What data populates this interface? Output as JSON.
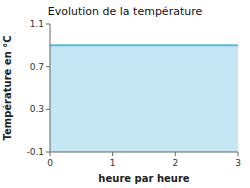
{
  "chart_data": {
    "type": "area",
    "title": "Evolution de la température",
    "xlabel": "heure par heure",
    "ylabel": "Température en °C",
    "x": [
      0,
      3
    ],
    "values": [
      0.9,
      0.9
    ],
    "color": "#55bbdd",
    "xlim": [
      0,
      3
    ],
    "ylim": [
      -0.1,
      1.1
    ],
    "xticks": [
      0,
      1,
      2,
      3
    ],
    "yticks": [
      -0.1,
      0.3,
      0.7,
      1.1
    ],
    "grid": false
  }
}
